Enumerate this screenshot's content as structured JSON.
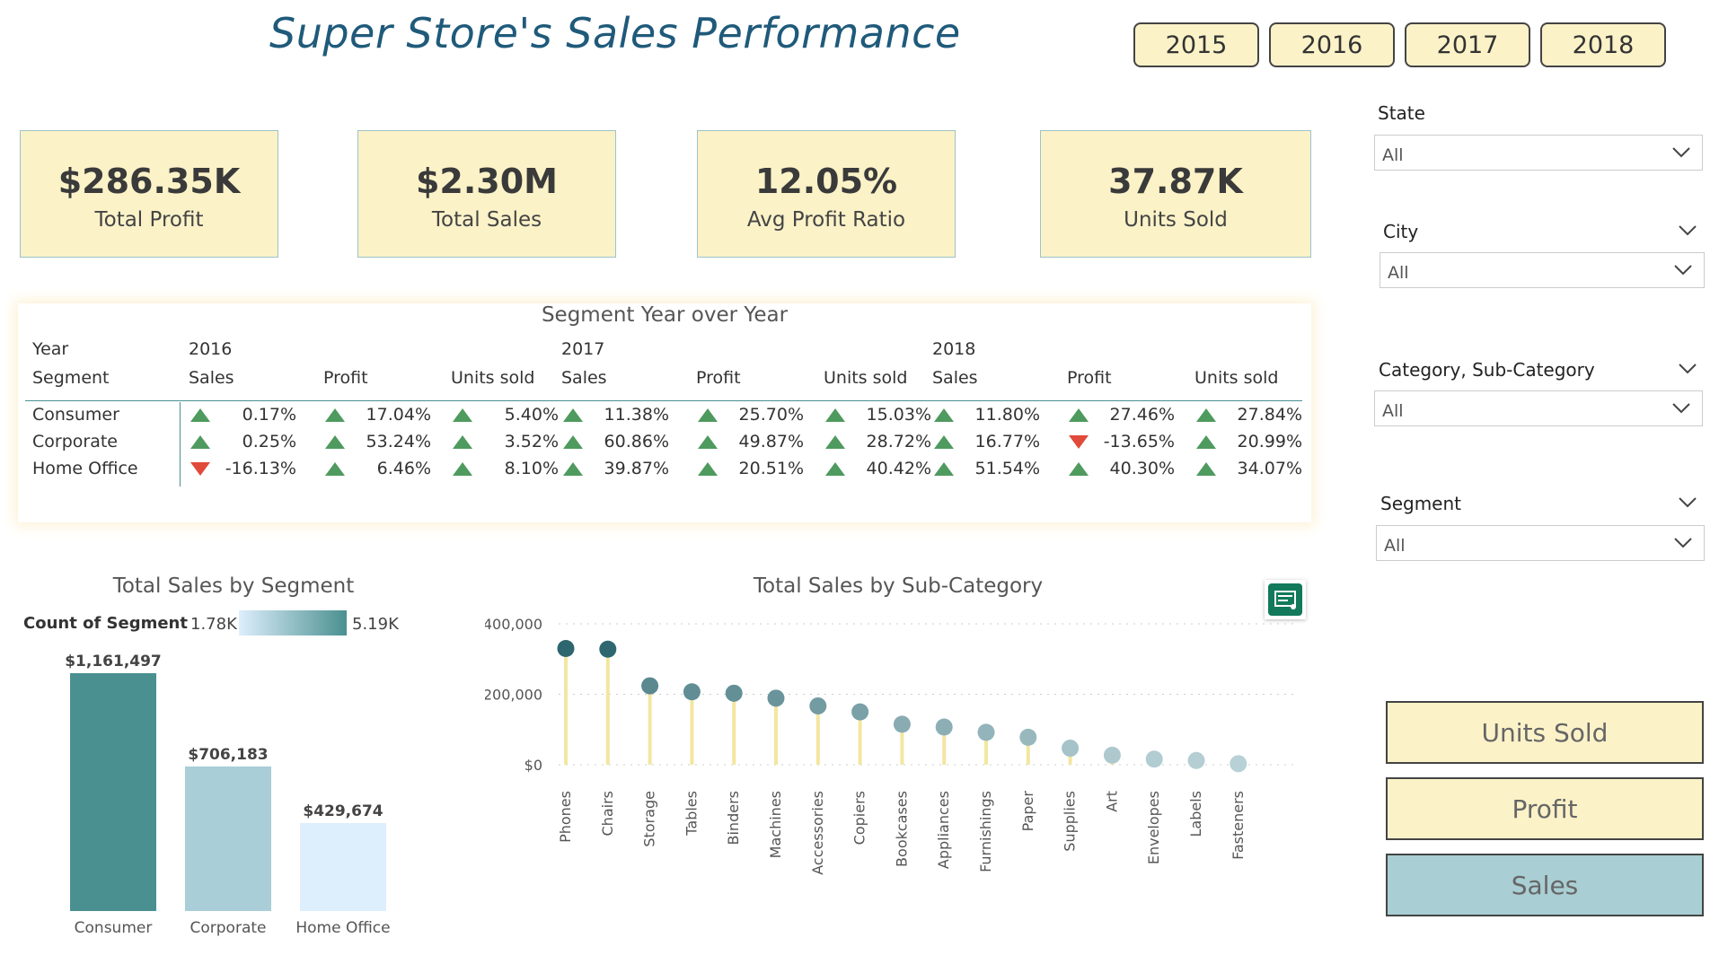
{
  "header": {
    "title": "Super Store's Sales Performance"
  },
  "year_buttons": [
    "2015",
    "2016",
    "2017",
    "2018"
  ],
  "kpis": [
    {
      "value": "$286.35K",
      "label": "Total Profit"
    },
    {
      "value": "$2.30M",
      "label": "Total Sales"
    },
    {
      "value": "12.05%",
      "label": "Avg Profit Ratio"
    },
    {
      "value": "37.87K",
      "label": "Units Sold"
    }
  ],
  "slicers": [
    {
      "label": "State",
      "value": "All"
    },
    {
      "label": "City",
      "value": "All"
    },
    {
      "label": "Category, Sub-Category",
      "value": "All"
    },
    {
      "label": "Segment",
      "value": "All"
    }
  ],
  "measure_buttons": [
    "Units Sold",
    "Profit",
    "Sales"
  ],
  "colors": {
    "accent": "#4a9090",
    "card": "#fbf2c8",
    "title": "#1f5a7a",
    "up": "#4f9a5e",
    "down": "#e04a3a",
    "sales_btn": "#a9ced4"
  },
  "yoy": {
    "title": "Segment Year over Year",
    "year_header": "Year",
    "segment_header": "Segment",
    "years": [
      "2016",
      "2017",
      "2018"
    ],
    "measures": [
      "Sales",
      "Profit",
      "Units sold"
    ],
    "rows": [
      {
        "segment": "Consumer",
        "values": [
          {
            "v": "0.17%",
            "d": "up"
          },
          {
            "v": "17.04%",
            "d": "up"
          },
          {
            "v": "5.40%",
            "d": "up"
          },
          {
            "v": "11.38%",
            "d": "up"
          },
          {
            "v": "25.70%",
            "d": "up"
          },
          {
            "v": "15.03%",
            "d": "up"
          },
          {
            "v": "11.80%",
            "d": "up"
          },
          {
            "v": "27.46%",
            "d": "up"
          },
          {
            "v": "27.84%",
            "d": "up"
          }
        ]
      },
      {
        "segment": "Corporate",
        "values": [
          {
            "v": "0.25%",
            "d": "up"
          },
          {
            "v": "53.24%",
            "d": "up"
          },
          {
            "v": "3.52%",
            "d": "up"
          },
          {
            "v": "60.86%",
            "d": "up"
          },
          {
            "v": "49.87%",
            "d": "up"
          },
          {
            "v": "28.72%",
            "d": "up"
          },
          {
            "v": "16.77%",
            "d": "up"
          },
          {
            "v": "-13.65%",
            "d": "down"
          },
          {
            "v": "20.99%",
            "d": "up"
          }
        ]
      },
      {
        "segment": "Home Office",
        "values": [
          {
            "v": "-16.13%",
            "d": "down"
          },
          {
            "v": "6.46%",
            "d": "up"
          },
          {
            "v": "8.10%",
            "d": "up"
          },
          {
            "v": "39.87%",
            "d": "up"
          },
          {
            "v": "20.51%",
            "d": "up"
          },
          {
            "v": "40.42%",
            "d": "up"
          },
          {
            "v": "51.54%",
            "d": "up"
          },
          {
            "v": "40.30%",
            "d": "up"
          },
          {
            "v": "34.07%",
            "d": "up"
          }
        ]
      }
    ]
  },
  "chart_data": [
    {
      "type": "bar",
      "title": "Total Sales by Segment",
      "legend_title": "Count of Segment",
      "legend_min": "1.78K",
      "legend_max": "5.19K",
      "categories": [
        "Consumer",
        "Corporate",
        "Home Office"
      ],
      "values": [
        1161497,
        706183,
        429674
      ],
      "labels": [
        "$1,161,497",
        "$706,183",
        "$429,674"
      ],
      "colors": [
        "#4a9090",
        "#a9ced8",
        "#ddeefc"
      ]
    },
    {
      "type": "scatter",
      "title": "Total Sales by Sub-Category",
      "categories": [
        "Phones",
        "Chairs",
        "Storage",
        "Tables",
        "Binders",
        "Machines",
        "Accessories",
        "Copiers",
        "Bookcases",
        "Appliances",
        "Furnishings",
        "Paper",
        "Supplies",
        "Art",
        "Envelopes",
        "Labels",
        "Fasteners"
      ],
      "values": [
        330000,
        328000,
        224000,
        207000,
        203000,
        189000,
        167000,
        150000,
        115000,
        107000,
        92000,
        78000,
        47000,
        27000,
        16000,
        12000,
        3000
      ],
      "ylim": [
        0,
        400000
      ],
      "yticks": [
        0,
        200000,
        400000
      ],
      "ytick_labels": [
        "$0",
        "$200,000",
        "$400,000"
      ]
    }
  ]
}
